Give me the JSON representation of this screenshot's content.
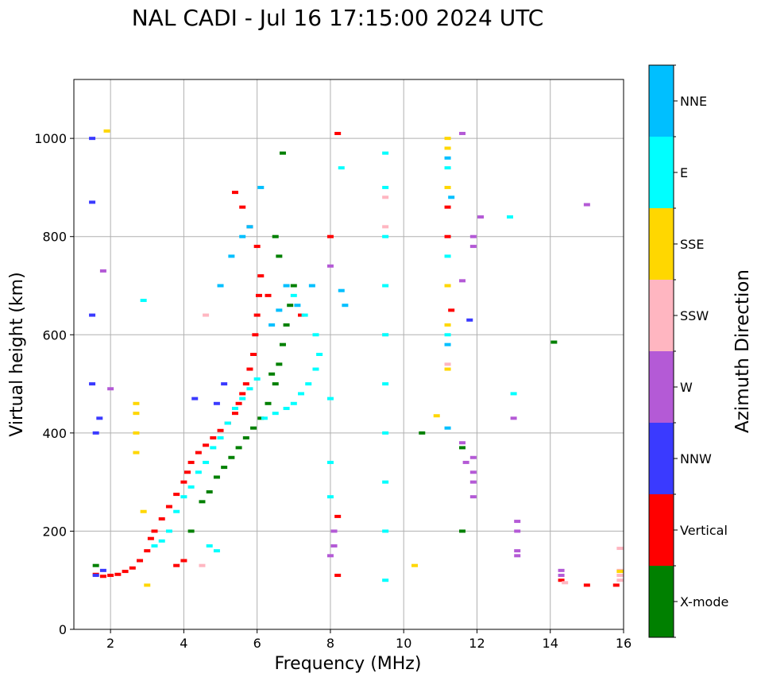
{
  "chart_data": {
    "type": "scatter",
    "title": "NAL CADI - Jul 16 17:15:00 2024 UTC",
    "xlabel": "Frequency (MHz)",
    "ylabel": "Virtual height (km)",
    "xlim": [
      1,
      16
    ],
    "ylim": [
      0,
      1120
    ],
    "xticks": [
      2,
      4,
      6,
      8,
      10,
      12,
      14,
      16
    ],
    "yticks": [
      0,
      200,
      400,
      600,
      800,
      1000
    ],
    "grid": true,
    "colorbar": {
      "title": "Azimuth Direction",
      "categories": [
        {
          "name": "X-mode",
          "color": "#008000"
        },
        {
          "name": "Vertical",
          "color": "#ff0000"
        },
        {
          "name": "NNW",
          "color": "#3a3aff"
        },
        {
          "name": "W",
          "color": "#b45ad6"
        },
        {
          "name": "SSW",
          "color": "#ffb6c1"
        },
        {
          "name": "SSE",
          "color": "#ffd700"
        },
        {
          "name": "E",
          "color": "#00ffff"
        },
        {
          "name": "NNE",
          "color": "#00bfff"
        }
      ]
    },
    "series": [
      {
        "name": "Vertical",
        "points": [
          [
            1.6,
            112
          ],
          [
            1.8,
            108
          ],
          [
            2.0,
            110
          ],
          [
            2.2,
            112
          ],
          [
            2.4,
            118
          ],
          [
            2.6,
            125
          ],
          [
            2.8,
            140
          ],
          [
            3.0,
            160
          ],
          [
            3.1,
            185
          ],
          [
            3.2,
            200
          ],
          [
            3.4,
            225
          ],
          [
            3.6,
            250
          ],
          [
            3.8,
            275
          ],
          [
            4.0,
            300
          ],
          [
            4.1,
            320
          ],
          [
            4.2,
            340
          ],
          [
            4.4,
            360
          ],
          [
            4.6,
            375
          ],
          [
            4.8,
            390
          ],
          [
            5.0,
            405
          ],
          [
            5.2,
            420
          ],
          [
            5.4,
            440
          ],
          [
            5.5,
            460
          ],
          [
            5.6,
            480
          ],
          [
            5.7,
            500
          ],
          [
            5.8,
            530
          ],
          [
            5.9,
            560
          ],
          [
            5.95,
            600
          ],
          [
            6.0,
            640
          ],
          [
            6.05,
            680
          ],
          [
            6.1,
            720
          ],
          [
            6.0,
            780
          ],
          [
            5.8,
            820
          ],
          [
            5.6,
            860
          ],
          [
            5.4,
            890
          ],
          [
            3.8,
            130
          ],
          [
            4.0,
            140
          ],
          [
            8.0,
            800
          ],
          [
            8.2,
            1010
          ],
          [
            8.2,
            230
          ],
          [
            8.2,
            110
          ],
          [
            11.2,
            800
          ],
          [
            11.2,
            860
          ],
          [
            11.3,
            650
          ],
          [
            14.3,
            100
          ],
          [
            15.0,
            90
          ],
          [
            15.8,
            90
          ],
          [
            7.2,
            640
          ],
          [
            6.3,
            680
          ]
        ]
      },
      {
        "name": "X-mode",
        "points": [
          [
            4.5,
            260
          ],
          [
            4.7,
            280
          ],
          [
            4.9,
            310
          ],
          [
            5.1,
            330
          ],
          [
            5.3,
            350
          ],
          [
            5.5,
            370
          ],
          [
            5.7,
            390
          ],
          [
            5.9,
            410
          ],
          [
            6.1,
            430
          ],
          [
            6.3,
            460
          ],
          [
            6.5,
            500
          ],
          [
            6.6,
            540
          ],
          [
            6.7,
            580
          ],
          [
            6.8,
            620
          ],
          [
            6.9,
            660
          ],
          [
            7.0,
            700
          ],
          [
            6.6,
            760
          ],
          [
            6.5,
            800
          ],
          [
            6.7,
            970
          ],
          [
            14.1,
            585
          ],
          [
            10.5,
            400
          ],
          [
            11.6,
            200
          ],
          [
            11.6,
            370
          ],
          [
            1.6,
            130
          ],
          [
            4.2,
            200
          ],
          [
            6.4,
            520
          ]
        ]
      },
      {
        "name": "NNW",
        "points": [
          [
            1.5,
            1000
          ],
          [
            1.5,
            870
          ],
          [
            1.5,
            640
          ],
          [
            1.5,
            500
          ],
          [
            1.6,
            400
          ],
          [
            1.7,
            430
          ],
          [
            1.8,
            120
          ],
          [
            4.3,
            470
          ],
          [
            4.9,
            460
          ],
          [
            5.1,
            500
          ],
          [
            11.8,
            630
          ],
          [
            1.6,
            110
          ]
        ]
      },
      {
        "name": "W",
        "points": [
          [
            8.0,
            150
          ],
          [
            8.1,
            170
          ],
          [
            8.1,
            200
          ],
          [
            11.6,
            380
          ],
          [
            11.7,
            340
          ],
          [
            11.9,
            350
          ],
          [
            11.9,
            320
          ],
          [
            11.9,
            300
          ],
          [
            11.9,
            270
          ],
          [
            11.9,
            780
          ],
          [
            11.9,
            800
          ],
          [
            12.1,
            840
          ],
          [
            13.1,
            220
          ],
          [
            13.1,
            200
          ],
          [
            13.1,
            160
          ],
          [
            13.1,
            150
          ],
          [
            14.3,
            120
          ],
          [
            14.3,
            110
          ],
          [
            15.0,
            865
          ],
          [
            13.0,
            430
          ],
          [
            11.6,
            1010
          ],
          [
            11.6,
            710
          ],
          [
            8.0,
            740
          ],
          [
            2.0,
            490
          ],
          [
            1.8,
            730
          ]
        ]
      },
      {
        "name": "SSW",
        "points": [
          [
            14.4,
            95
          ],
          [
            15.9,
            100
          ],
          [
            15.9,
            110
          ],
          [
            15.9,
            120
          ],
          [
            15.9,
            165
          ],
          [
            11.2,
            540
          ],
          [
            9.5,
            880
          ],
          [
            9.5,
            820
          ],
          [
            9.5,
            600
          ],
          [
            4.6,
            640
          ],
          [
            4.5,
            130
          ]
        ]
      },
      {
        "name": "SSE",
        "points": [
          [
            2.7,
            360
          ],
          [
            2.7,
            400
          ],
          [
            2.7,
            440
          ],
          [
            2.7,
            460
          ],
          [
            11.2,
            1000
          ],
          [
            11.2,
            980
          ],
          [
            11.2,
            900
          ],
          [
            11.2,
            700
          ],
          [
            11.2,
            620
          ],
          [
            11.2,
            530
          ],
          [
            10.3,
            130
          ],
          [
            15.9,
            118
          ],
          [
            1.9,
            1015
          ],
          [
            3.0,
            90
          ],
          [
            2.9,
            240
          ],
          [
            10.9,
            435
          ]
        ]
      },
      {
        "name": "E",
        "points": [
          [
            3.2,
            170
          ],
          [
            3.4,
            180
          ],
          [
            3.6,
            200
          ],
          [
            3.8,
            240
          ],
          [
            4.0,
            270
          ],
          [
            4.2,
            290
          ],
          [
            4.4,
            320
          ],
          [
            4.6,
            340
          ],
          [
            4.8,
            370
          ],
          [
            5.0,
            390
          ],
          [
            5.2,
            420
          ],
          [
            5.4,
            450
          ],
          [
            5.6,
            470
          ],
          [
            5.8,
            490
          ],
          [
            6.0,
            510
          ],
          [
            6.2,
            430
          ],
          [
            6.5,
            440
          ],
          [
            6.8,
            450
          ],
          [
            7.0,
            460
          ],
          [
            7.2,
            480
          ],
          [
            7.4,
            500
          ],
          [
            7.6,
            530
          ],
          [
            7.7,
            560
          ],
          [
            7.6,
            600
          ],
          [
            7.3,
            640
          ],
          [
            7.0,
            680
          ],
          [
            4.7,
            170
          ],
          [
            4.9,
            160
          ],
          [
            9.5,
            970
          ],
          [
            9.5,
            900
          ],
          [
            9.5,
            800
          ],
          [
            9.5,
            700
          ],
          [
            9.5,
            600
          ],
          [
            9.5,
            500
          ],
          [
            9.5,
            400
          ],
          [
            9.5,
            300
          ],
          [
            9.5,
            200
          ],
          [
            9.5,
            100
          ],
          [
            8.0,
            270
          ],
          [
            8.0,
            340
          ],
          [
            8.0,
            470
          ],
          [
            11.2,
            940
          ],
          [
            11.2,
            760
          ],
          [
            11.2,
            600
          ],
          [
            12.9,
            840
          ],
          [
            13.0,
            480
          ],
          [
            8.3,
            940
          ],
          [
            2.9,
            670
          ]
        ]
      },
      {
        "name": "NNE",
        "points": [
          [
            5.0,
            700
          ],
          [
            5.3,
            760
          ],
          [
            5.6,
            800
          ],
          [
            5.8,
            820
          ],
          [
            6.1,
            900
          ],
          [
            6.4,
            620
          ],
          [
            6.6,
            650
          ],
          [
            6.8,
            700
          ],
          [
            7.1,
            660
          ],
          [
            7.5,
            700
          ],
          [
            8.3,
            690
          ],
          [
            8.4,
            660
          ],
          [
            11.2,
            960
          ],
          [
            11.3,
            880
          ],
          [
            11.2,
            580
          ],
          [
            11.2,
            410
          ]
        ]
      }
    ]
  }
}
